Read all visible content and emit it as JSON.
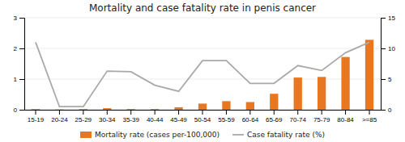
{
  "chart_data": {
    "type": "bar",
    "title": "Mortality and case fatality rate in penis cancer",
    "categories": [
      "15-19",
      "20-24",
      "25-29",
      "30-34",
      "35-39",
      "40-44",
      "45-49",
      "50-54",
      "55-59",
      "60-64",
      "65-69",
      "70-74",
      "75-79",
      "80-84",
      ">=85"
    ],
    "series": [
      {
        "name": "Mortality rate (cases per-100,000)",
        "type": "bar",
        "color": "#E87722",
        "values": [
          0.02,
          0.01,
          0.02,
          0.05,
          0.02,
          0.02,
          0.08,
          0.2,
          0.28,
          0.25,
          0.52,
          1.05,
          1.07,
          1.72,
          2.28
        ]
      },
      {
        "name": "Case fatality rate (%)",
        "type": "line",
        "axis": "y2",
        "color": "#A9A9A9",
        "values": [
          11.0,
          0.5,
          0.5,
          6.3,
          6.2,
          4.0,
          3.0,
          8.0,
          8.0,
          4.3,
          4.3,
          7.2,
          6.4,
          9.3,
          11.0
        ]
      }
    ],
    "ylim": [
      0,
      3
    ],
    "yticks": [
      0,
      1,
      2,
      3
    ],
    "y2lim": [
      0,
      15
    ],
    "y2ticks": [
      0,
      5,
      10,
      15
    ],
    "grid": true,
    "legend": "bottom"
  }
}
